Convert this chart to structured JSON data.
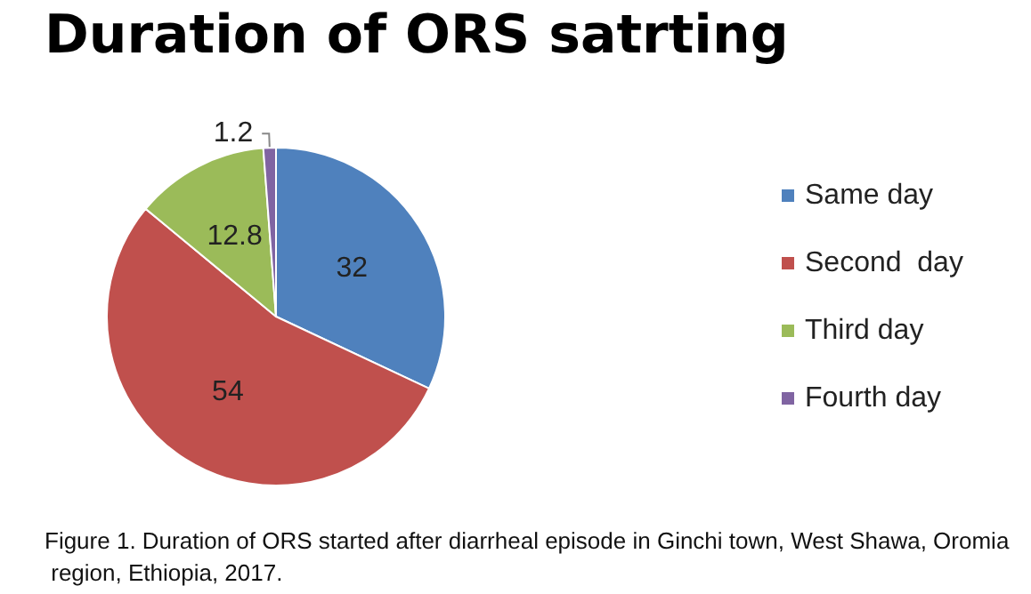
{
  "chart_data": {
    "type": "pie",
    "title": "Duration of ORS satrting",
    "categories": [
      "Same day",
      "Second  day",
      "Third day",
      "Fourth day"
    ],
    "values": [
      32,
      54,
      12.8,
      1.2
    ],
    "colors": [
      "#4f81bd",
      "#c0504d",
      "#9bbb59",
      "#8064a2"
    ],
    "data_labels": true,
    "legend": "right",
    "annotations": [
      "Figure 1. Duration of ORS started after diarrheal episode in Ginchi town, West Shawa, Oromia region, Ethiopia, 2017."
    ]
  }
}
